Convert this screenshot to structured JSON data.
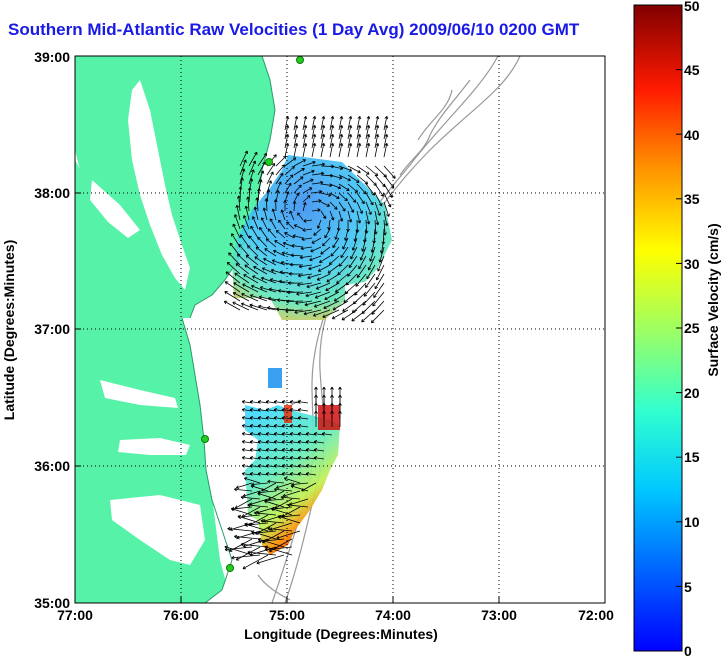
{
  "title": "Southern Mid-Atlantic Raw Velocities (1 Day Avg) 2009/06/10 0200 GMT",
  "xlabel": "Longitude (Degrees:Minutes)",
  "ylabel": "Latitude (Degrees:Minutes)",
  "x_ticks": [
    "77:00",
    "76:00",
    "75:00",
    "74:00",
    "73:00",
    "72:00"
  ],
  "y_ticks": [
    "39:00",
    "38:00",
    "37:00",
    "36:00",
    "35:00"
  ],
  "colorbar": {
    "label": "Surface Velocity (cm/s)",
    "ticks": [
      "50",
      "45",
      "40",
      "35",
      "30",
      "25",
      "20",
      "15",
      "10",
      "5",
      "0"
    ],
    "min": 0,
    "max": 50
  },
  "colors": {
    "land": "#55f2a8",
    "title": "#1a1ae6",
    "bathymetry": "#999999"
  }
}
